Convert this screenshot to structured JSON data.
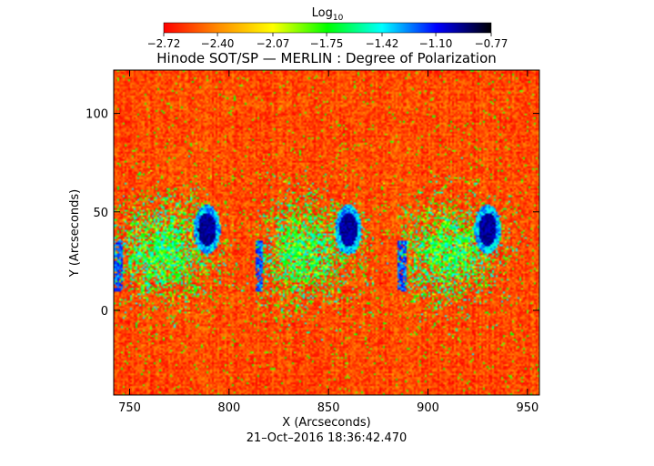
{
  "chart_data": {
    "type": "heatmap",
    "title": "Hinode SOT/SP — MERLIN : Degree of Polarization",
    "xlabel": "X (Arcseconds)",
    "ylabel": "Y (Arcseconds)",
    "footer": "21–Oct–2016 18:36:42.470",
    "xlim": [
      742,
      956
    ],
    "ylim": [
      -43,
      122
    ],
    "x_ticks": [
      750,
      800,
      850,
      900,
      950
    ],
    "y_ticks": [
      0,
      50,
      100
    ],
    "x_tick_labels": [
      "750",
      "800",
      "850",
      "900",
      "950"
    ],
    "y_tick_labels": [
      "0",
      "50",
      "100"
    ],
    "colorbar": {
      "label_base": "Log",
      "label_sub": "10",
      "range": [
        -2.72,
        -0.77
      ],
      "tick_values": [
        -2.72,
        -2.4,
        -2.07,
        -1.75,
        -1.42,
        -1.1,
        -0.77
      ],
      "tick_labels": [
        "−2.72",
        "−2.40",
        "−2.07",
        "−1.75",
        "−1.42",
        "−1.10",
        "−0.77"
      ],
      "colormap": [
        "#ff0000",
        "#ff8c00",
        "#ffff00",
        "#00ff00",
        "#00ffff",
        "#0000ff",
        "#000000"
      ]
    },
    "panels": [
      {
        "x_start": 742,
        "x_end": 813,
        "sunspot_center": [
          789,
          41
        ]
      },
      {
        "x_start": 813,
        "x_end": 885,
        "sunspot_center": [
          860,
          41
        ]
      },
      {
        "x_start": 885,
        "x_end": 956,
        "sunspot_center": [
          930,
          41
        ]
      }
    ],
    "background_level": -2.55
  }
}
